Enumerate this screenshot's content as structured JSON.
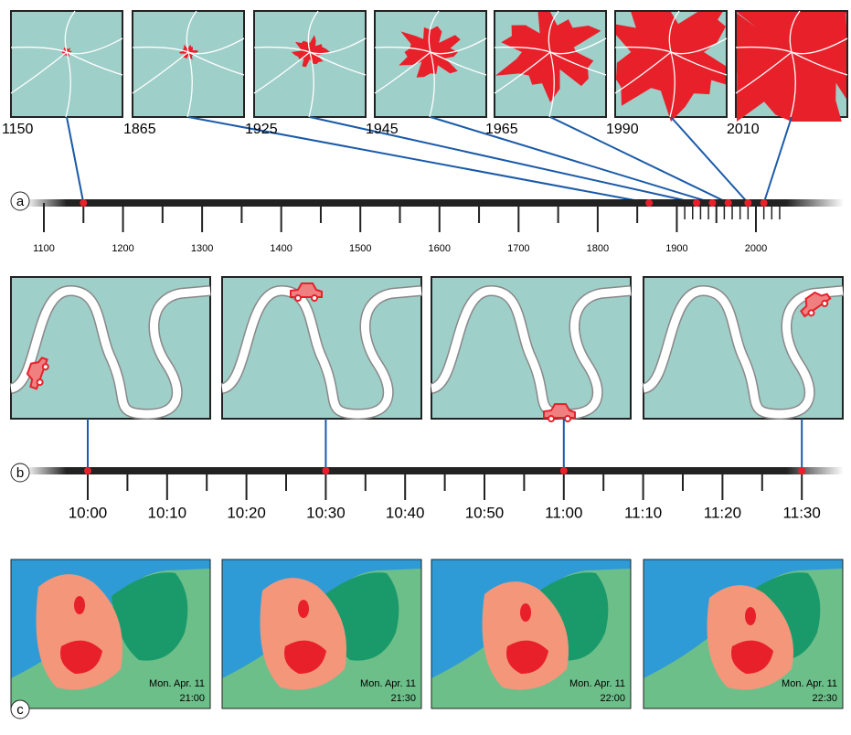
{
  "panel_a": {
    "label": "a",
    "years": [
      1150,
      1865,
      1925,
      1945,
      1965,
      1990,
      2010
    ],
    "ticks": [
      1100,
      1200,
      1300,
      1400,
      1500,
      1600,
      1700,
      1800,
      1900,
      2000
    ]
  },
  "panel_b": {
    "label": "b",
    "ticks": [
      "10:00",
      "10:10",
      "10:20",
      "10:30",
      "10:40",
      "10:50",
      "11:00",
      "11:10",
      "11:20",
      "11:30"
    ]
  },
  "panel_c": {
    "label": "c",
    "maps": [
      {
        "date": "Mon. Apr. 11",
        "time": "21:00"
      },
      {
        "date": "Mon. Apr. 11",
        "time": "21:30"
      },
      {
        "date": "Mon. Apr. 11",
        "time": "22:00"
      },
      {
        "date": "Mon. Apr. 11",
        "time": "22:30"
      }
    ]
  }
}
